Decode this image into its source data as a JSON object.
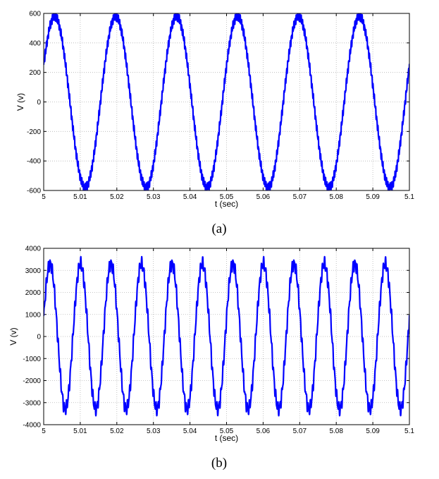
{
  "chart_data": [
    {
      "type": "line",
      "caption": "(a)",
      "xlabel": "t (sec)",
      "ylabel": "V (v)",
      "xlim": [
        5,
        5.1
      ],
      "ylim": [
        -600,
        600
      ],
      "x_ticks": [
        "5",
        "5.01",
        "5.02",
        "5.03",
        "5.04",
        "5.05",
        "5.06",
        "5.07",
        "5.08",
        "5.09",
        "5.1"
      ],
      "y_ticks": [
        "-600",
        "-400",
        "-200",
        "0",
        "200",
        "400",
        "600"
      ],
      "grid": true,
      "series": [
        {
          "color": "#0000ff",
          "waveform": "sine",
          "amplitude": 580,
          "frequency_hz": 60,
          "phase_deg": 25,
          "ripple_amplitude": 22,
          "ripple_frequency_hz": 3000,
          "x": [
            5.0,
            5.003,
            5.0113,
            5.0197,
            5.028,
            5.0363,
            5.0447,
            5.053,
            5.0613,
            5.0697,
            5.078,
            5.0863,
            5.0947,
            5.1
          ],
          "y": [
            250,
            580,
            -580,
            580,
            -580,
            580,
            -580,
            580,
            -580,
            580,
            -580,
            580,
            -580,
            250
          ]
        }
      ]
    },
    {
      "type": "line",
      "caption": "(b)",
      "xlabel": "t (sec)",
      "ylabel": "V (v)",
      "xlim": [
        5,
        5.1
      ],
      "ylim": [
        -4000,
        4000
      ],
      "x_ticks": [
        "5",
        "5.01",
        "5.02",
        "5.03",
        "5.04",
        "5.05",
        "5.06",
        "5.07",
        "5.08",
        "5.09",
        "5.1"
      ],
      "y_ticks": [
        "-4000",
        "-3000",
        "-2000",
        "-1000",
        "0",
        "1000",
        "2000",
        "3000",
        "4000"
      ],
      "grid": true,
      "series": [
        {
          "color": "#0000ff",
          "waveform": "sine",
          "amplitude": 3300,
          "frequency_hz": 120,
          "phase_deg": 15,
          "ripple_amplitude": 220,
          "ripple_frequency_hz": 1800,
          "x": [
            5.0,
            5.0015,
            5.0057,
            5.0098,
            5.014,
            5.0182,
            5.0223,
            5.0265,
            5.0307,
            5.0348,
            5.039,
            5.0432,
            5.0473,
            5.0515,
            5.0557,
            5.0598,
            5.064,
            5.0682,
            5.0723,
            5.0765,
            5.0807,
            5.0848,
            5.089,
            5.0932,
            5.0973,
            5.1
          ],
          "y": [
            850,
            3300,
            -3300,
            3300,
            -3300,
            3300,
            -3300,
            3300,
            -3300,
            3300,
            -3300,
            3300,
            -3300,
            3300,
            -3300,
            3300,
            -3300,
            3300,
            -3300,
            3300,
            -3300,
            3300,
            -3300,
            3300,
            -3300,
            -600
          ]
        }
      ]
    }
  ]
}
